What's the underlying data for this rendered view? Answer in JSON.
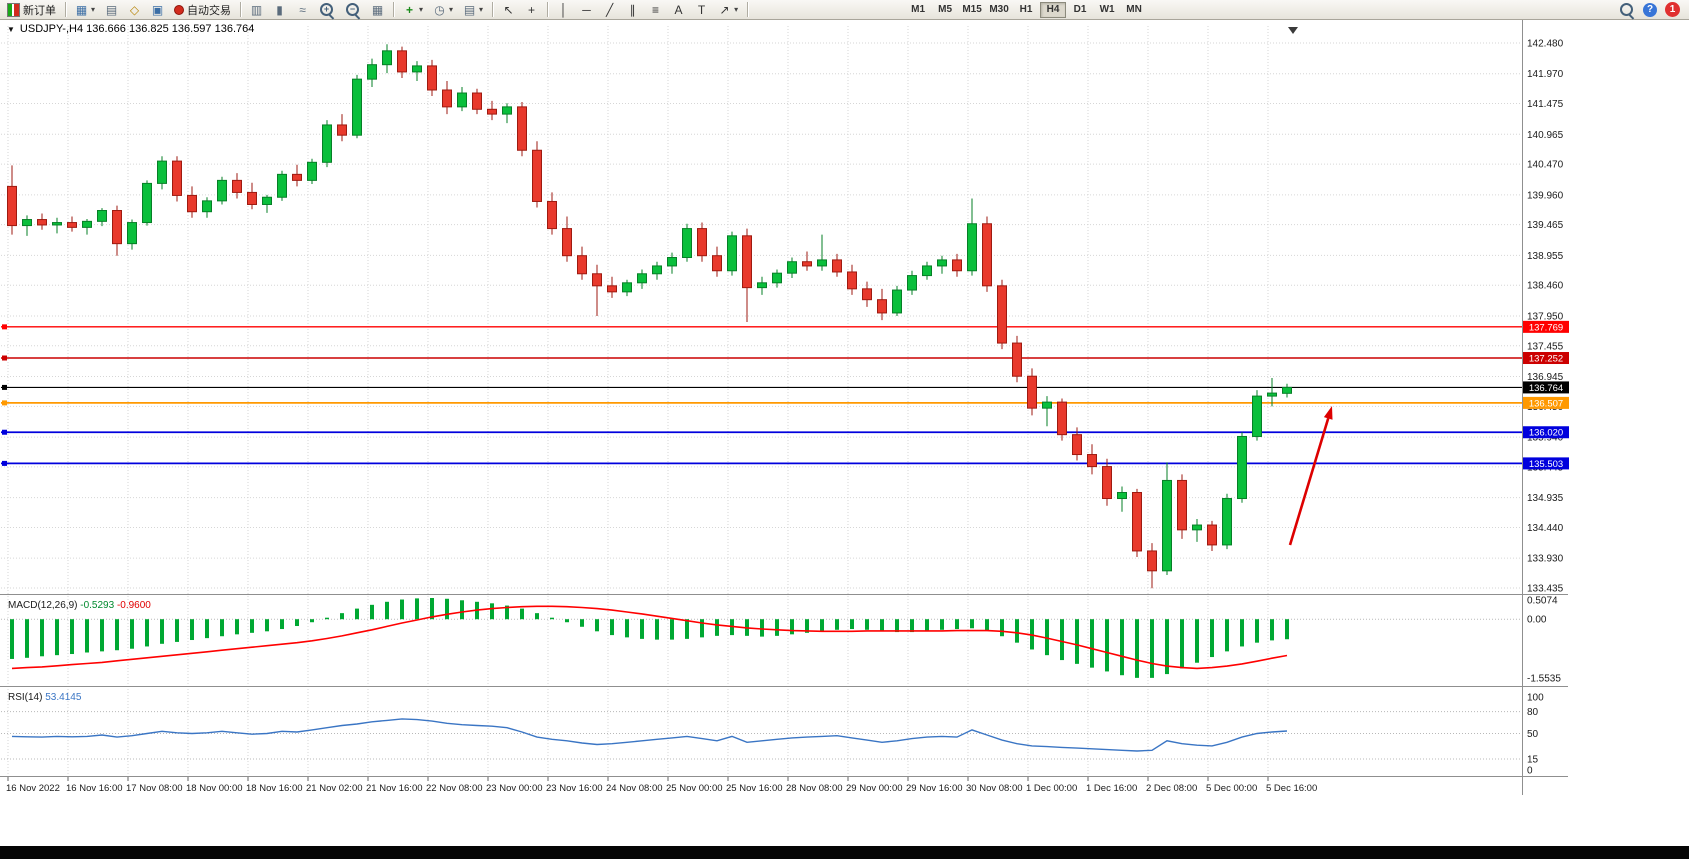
{
  "toolbar": {
    "new_order_label": "新订单",
    "autotrade_label": "自动交易",
    "timeframes": [
      "M1",
      "M5",
      "M15",
      "M30",
      "H1",
      "H4",
      "D1",
      "W1",
      "MN"
    ],
    "active_timeframe": "H4",
    "notification_count": "1"
  },
  "icons": {
    "symbol_dropdown": "▼",
    "chart": "▦",
    "profiles": "▤",
    "metaeditor": "◇",
    "terminal": "▣",
    "bar_type": "▥",
    "candle_type": "▮",
    "line_type": "≈",
    "zoom_in": "+",
    "zoom_out": "−",
    "tile": "▦",
    "dropdown": "▾",
    "indicators": "+",
    "periods": "◷",
    "templates": "▤",
    "cursor": "↖",
    "crosshair": "+",
    "vline": "│",
    "hline": "─",
    "trendline": "╱",
    "channel": "∥",
    "fibonacci": "≡",
    "text": "A",
    "textlabel": "T",
    "arrows": "↗",
    "help": "?"
  },
  "chart": {
    "title_text": "USDJPY-,H4 136.666 136.825 136.597 136.764"
  },
  "chart_data": {
    "type": "candlestick",
    "symbol": "USDJPY-",
    "timeframe": "H4",
    "ohlc_current": {
      "open": 136.666,
      "high": 136.825,
      "low": 136.597,
      "close": 136.764
    },
    "y_axis_labels": [
      "142.480",
      "141.970",
      "141.475",
      "140.965",
      "140.470",
      "139.960",
      "139.465",
      "138.955",
      "138.460",
      "137.950",
      "137.455",
      "136.945",
      "136.450",
      "135.940",
      "135.445",
      "134.935",
      "134.440",
      "133.930",
      "133.435"
    ],
    "x_labels": [
      "16 Nov 2022",
      "16 Nov 16:00",
      "17 Nov 08:00",
      "18 Nov 00:00",
      "18 Nov 16:00",
      "21 Nov 02:00",
      "21 Nov 16:00",
      "22 Nov 08:00",
      "23 Nov 00:00",
      "23 Nov 16:00",
      "24 Nov 08:00",
      "25 Nov 00:00",
      "25 Nov 16:00",
      "28 Nov 08:00",
      "29 Nov 00:00",
      "29 Nov 16:00",
      "30 Nov 08:00",
      "1 Dec 00:00",
      "1 Dec 16:00",
      "2 Dec 08:00",
      "5 Dec 00:00",
      "5 Dec 16:00"
    ],
    "hlines": [
      {
        "price": 137.769,
        "label": "137.769",
        "color": "#FF0000",
        "width": 1.4
      },
      {
        "price": 137.252,
        "label": "137.252",
        "color": "#CC0000",
        "width": 1.4
      },
      {
        "price": 136.764,
        "label": "136.764",
        "color": "#000000",
        "width": 1.2
      },
      {
        "price": 136.507,
        "label": "136.507",
        "color": "#FF9900",
        "width": 1.8
      },
      {
        "price": 136.02,
        "label": "136.020",
        "color": "#0000DD",
        "width": 1.8
      },
      {
        "price": 135.503,
        "label": "135.503",
        "color": "#0000DD",
        "width": 1.8
      }
    ],
    "colors": {
      "up": "#0ABF3C",
      "up_border": "#067F26",
      "down": "#E8392C",
      "down_border": "#9E1A10",
      "macd_hist": "#00A832",
      "macd_signal": "#FF0000",
      "rsi": "#3A75C4",
      "grid": "#D6D6D6"
    },
    "candles": [
      [
        140.1,
        140.45,
        139.3,
        139.45
      ],
      [
        139.45,
        139.62,
        139.28,
        139.55
      ],
      [
        139.55,
        139.65,
        139.38,
        139.46
      ],
      [
        139.46,
        139.58,
        139.32,
        139.5
      ],
      [
        139.5,
        139.6,
        139.35,
        139.42
      ],
      [
        139.42,
        139.56,
        139.3,
        139.52
      ],
      [
        139.52,
        139.74,
        139.44,
        139.7
      ],
      [
        139.7,
        139.78,
        138.95,
        139.15
      ],
      [
        139.15,
        139.55,
        139.05,
        139.5
      ],
      [
        139.5,
        140.2,
        139.45,
        140.15
      ],
      [
        140.15,
        140.6,
        140.05,
        140.52
      ],
      [
        140.52,
        140.6,
        139.85,
        139.95
      ],
      [
        139.95,
        140.1,
        139.58,
        139.68
      ],
      [
        139.68,
        139.92,
        139.58,
        139.86
      ],
      [
        139.86,
        140.26,
        139.8,
        140.2
      ],
      [
        140.2,
        140.32,
        139.9,
        140.0
      ],
      [
        140.0,
        140.16,
        139.72,
        139.8
      ],
      [
        139.8,
        139.96,
        139.66,
        139.92
      ],
      [
        139.92,
        140.36,
        139.86,
        140.3
      ],
      [
        140.3,
        140.46,
        140.1,
        140.2
      ],
      [
        140.2,
        140.56,
        140.14,
        140.5
      ],
      [
        140.5,
        141.2,
        140.42,
        141.12
      ],
      [
        141.12,
        141.3,
        140.85,
        140.95
      ],
      [
        140.95,
        141.95,
        140.9,
        141.88
      ],
      [
        141.88,
        142.22,
        141.75,
        142.12
      ],
      [
        142.12,
        142.46,
        141.98,
        142.35
      ],
      [
        142.35,
        142.42,
        141.9,
        142.0
      ],
      [
        142.0,
        142.18,
        141.85,
        142.1
      ],
      [
        142.1,
        142.2,
        141.6,
        141.7
      ],
      [
        141.7,
        141.85,
        141.3,
        141.42
      ],
      [
        141.42,
        141.75,
        141.35,
        141.65
      ],
      [
        141.65,
        141.72,
        141.3,
        141.38
      ],
      [
        141.38,
        141.52,
        141.2,
        141.3
      ],
      [
        141.3,
        141.48,
        141.15,
        141.42
      ],
      [
        141.42,
        141.5,
        140.6,
        140.7
      ],
      [
        140.7,
        140.85,
        139.75,
        139.85
      ],
      [
        139.85,
        140.0,
        139.3,
        139.4
      ],
      [
        139.4,
        139.6,
        138.85,
        138.95
      ],
      [
        138.95,
        139.1,
        138.55,
        138.65
      ],
      [
        138.65,
        138.8,
        137.95,
        138.45
      ],
      [
        138.45,
        138.6,
        138.25,
        138.35
      ],
      [
        138.35,
        138.55,
        138.28,
        138.5
      ],
      [
        138.5,
        138.72,
        138.4,
        138.65
      ],
      [
        138.65,
        138.85,
        138.55,
        138.78
      ],
      [
        138.78,
        139.0,
        138.65,
        138.92
      ],
      [
        138.92,
        139.48,
        138.85,
        139.4
      ],
      [
        139.4,
        139.5,
        138.85,
        138.95
      ],
      [
        138.95,
        139.1,
        138.6,
        138.7
      ],
      [
        138.7,
        139.35,
        138.62,
        139.28
      ],
      [
        139.28,
        139.4,
        137.85,
        138.42
      ],
      [
        138.42,
        138.6,
        138.3,
        138.5
      ],
      [
        138.5,
        138.72,
        138.42,
        138.66
      ],
      [
        138.66,
        138.92,
        138.58,
        138.85
      ],
      [
        138.85,
        139.02,
        138.7,
        138.78
      ],
      [
        138.78,
        139.3,
        138.7,
        138.88
      ],
      [
        138.88,
        138.98,
        138.6,
        138.68
      ],
      [
        138.68,
        138.8,
        138.3,
        138.4
      ],
      [
        138.4,
        138.52,
        138.1,
        138.22
      ],
      [
        138.22,
        138.4,
        137.88,
        138.0
      ],
      [
        138.0,
        138.45,
        137.95,
        138.38
      ],
      [
        138.38,
        138.7,
        138.3,
        138.62
      ],
      [
        138.62,
        138.85,
        138.55,
        138.78
      ],
      [
        138.78,
        138.95,
        138.65,
        138.88
      ],
      [
        138.88,
        138.98,
        138.6,
        138.7
      ],
      [
        138.7,
        139.9,
        138.62,
        139.48
      ],
      [
        139.48,
        139.6,
        138.35,
        138.45
      ],
      [
        138.45,
        138.55,
        137.4,
        137.5
      ],
      [
        137.5,
        137.62,
        136.85,
        136.95
      ],
      [
        136.95,
        137.08,
        136.3,
        136.42
      ],
      [
        136.42,
        136.62,
        136.12,
        136.52
      ],
      [
        136.52,
        136.58,
        135.88,
        135.98
      ],
      [
        135.98,
        136.1,
        135.55,
        135.65
      ],
      [
        135.65,
        135.82,
        135.32,
        135.45
      ],
      [
        135.45,
        135.58,
        134.8,
        134.92
      ],
      [
        134.92,
        135.12,
        134.7,
        135.02
      ],
      [
        135.02,
        135.08,
        133.95,
        134.05
      ],
      [
        134.05,
        134.18,
        133.43,
        133.72
      ],
      [
        133.72,
        135.52,
        133.65,
        135.22
      ],
      [
        135.22,
        135.32,
        134.25,
        134.4
      ],
      [
        134.4,
        134.58,
        134.2,
        134.48
      ],
      [
        134.48,
        134.55,
        134.05,
        134.15
      ],
      [
        134.15,
        135.0,
        134.08,
        134.92
      ],
      [
        134.92,
        136.02,
        134.85,
        135.95
      ],
      [
        135.95,
        136.72,
        135.88,
        136.62
      ],
      [
        136.62,
        136.92,
        136.45,
        136.67
      ],
      [
        136.666,
        136.825,
        136.597,
        136.764
      ]
    ],
    "indicators": {
      "macd": {
        "name": "MACD(12,26,9)",
        "value_str": "-0.5293",
        "signal_str": "-0.9600",
        "axis_labels": [
          "0.5074",
          "0.00",
          "-1.5535"
        ],
        "histogram": [
          -1.05,
          -1.02,
          -0.98,
          -0.95,
          -0.92,
          -0.88,
          -0.85,
          -0.82,
          -0.78,
          -0.72,
          -0.65,
          -0.6,
          -0.55,
          -0.5,
          -0.45,
          -0.4,
          -0.36,
          -0.32,
          -0.26,
          -0.18,
          -0.08,
          0.04,
          0.16,
          0.28,
          0.38,
          0.46,
          0.52,
          0.55,
          0.56,
          0.54,
          0.5,
          0.46,
          0.42,
          0.36,
          0.28,
          0.16,
          0.04,
          -0.08,
          -0.2,
          -0.32,
          -0.42,
          -0.48,
          -0.52,
          -0.54,
          -0.54,
          -0.52,
          -0.48,
          -0.44,
          -0.42,
          -0.44,
          -0.46,
          -0.44,
          -0.4,
          -0.36,
          -0.32,
          -0.28,
          -0.26,
          -0.28,
          -0.32,
          -0.34,
          -0.34,
          -0.32,
          -0.28,
          -0.26,
          -0.24,
          -0.3,
          -0.45,
          -0.62,
          -0.8,
          -0.95,
          -1.08,
          -1.18,
          -1.28,
          -1.38,
          -1.48,
          -1.55,
          -1.55,
          -1.45,
          -1.3,
          -1.15,
          -1.0,
          -0.85,
          -0.72,
          -0.62,
          -0.56,
          -0.5293
        ],
        "signal_line": [
          -1.3,
          -1.28,
          -1.26,
          -1.23,
          -1.2,
          -1.17,
          -1.14,
          -1.1,
          -1.06,
          -1.02,
          -0.98,
          -0.94,
          -0.9,
          -0.86,
          -0.82,
          -0.78,
          -0.74,
          -0.7,
          -0.66,
          -0.62,
          -0.57,
          -0.51,
          -0.44,
          -0.36,
          -0.28,
          -0.19,
          -0.1,
          -0.02,
          0.06,
          0.13,
          0.19,
          0.24,
          0.28,
          0.31,
          0.33,
          0.34,
          0.34,
          0.33,
          0.31,
          0.28,
          0.24,
          0.19,
          0.14,
          0.08,
          0.02,
          -0.04,
          -0.1,
          -0.15,
          -0.19,
          -0.23,
          -0.26,
          -0.28,
          -0.3,
          -0.31,
          -0.32,
          -0.32,
          -0.32,
          -0.31,
          -0.31,
          -0.31,
          -0.31,
          -0.31,
          -0.31,
          -0.3,
          -0.3,
          -0.3,
          -0.32,
          -0.36,
          -0.42,
          -0.5,
          -0.59,
          -0.68,
          -0.78,
          -0.88,
          -0.98,
          -1.08,
          -1.17,
          -1.24,
          -1.28,
          -1.3,
          -1.28,
          -1.24,
          -1.18,
          -1.11,
          -1.03,
          -0.96
        ]
      },
      "rsi": {
        "name": "RSI(14)",
        "value_str": "53.4145",
        "axis_labels": [
          "100",
          "80",
          "50",
          "15",
          "0"
        ],
        "levels": [
          80,
          50,
          15
        ],
        "values": [
          46,
          45.5,
          45,
          46,
          45.5,
          46,
          48,
          45,
          47,
          50,
          53,
          51,
          50,
          51,
          53,
          51,
          49,
          50,
          53,
          52,
          55,
          58,
          61,
          63,
          66,
          68,
          70,
          69,
          67,
          64,
          62,
          61,
          60,
          58,
          52,
          45,
          42,
          40,
          37,
          35,
          36,
          38,
          40,
          42,
          44,
          46,
          43,
          40,
          46,
          38,
          40,
          42,
          44,
          45,
          46,
          47,
          44,
          41,
          38,
          40,
          43,
          45,
          46,
          45,
          55,
          48,
          41,
          36,
          33,
          32,
          31,
          30,
          29,
          28,
          27,
          26,
          27,
          40,
          36,
          34,
          33,
          38,
          45,
          50,
          52,
          53.41
        ]
      }
    },
    "annotations": [
      {
        "type": "arrow",
        "direction": "up-right",
        "color": "#DD0000"
      }
    ]
  }
}
